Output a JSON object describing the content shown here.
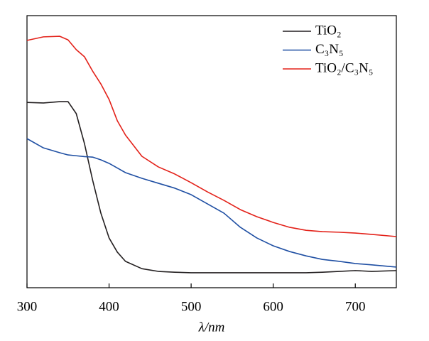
{
  "chart_data": {
    "type": "line",
    "xlabel": "λ/nm",
    "x": [
      300,
      320,
      340,
      350,
      360,
      370,
      380,
      390,
      400,
      410,
      420,
      440,
      460,
      480,
      500,
      520,
      540,
      560,
      580,
      600,
      620,
      640,
      660,
      680,
      700,
      720,
      750
    ],
    "series": [
      {
        "name": "TiO₂",
        "color": "#231f20",
        "values": [
          68.1,
          67.9,
          68.4,
          68.4,
          64.0,
          53.0,
          39.5,
          27.4,
          18.3,
          13.1,
          9.7,
          7.0,
          6.0,
          5.7,
          5.5,
          5.5,
          5.5,
          5.5,
          5.5,
          5.5,
          5.5,
          5.5,
          5.7,
          6.0,
          6.3,
          6.0,
          6.3
        ]
      },
      {
        "name": "C₃N₅",
        "color": "#1f4fa3",
        "values": [
          54.8,
          51.4,
          49.6,
          48.8,
          48.5,
          48.2,
          48.0,
          47.0,
          45.7,
          44.0,
          42.3,
          40.2,
          38.4,
          36.6,
          34.2,
          30.8,
          27.4,
          22.2,
          18.3,
          15.4,
          13.3,
          11.7,
          10.4,
          9.7,
          8.9,
          8.4,
          7.6
        ]
      },
      {
        "name": "TiO₂/C₃N₅",
        "color": "#e32119",
        "values": [
          90.9,
          92.2,
          92.4,
          91.1,
          87.5,
          84.9,
          79.6,
          74.9,
          69.2,
          61.4,
          56.1,
          48.3,
          44.4,
          41.8,
          38.6,
          35.2,
          32.1,
          28.7,
          26.1,
          24.0,
          22.2,
          21.1,
          20.6,
          20.4,
          20.1,
          19.6,
          18.8
        ]
      }
    ],
    "xlim": [
      300,
      750
    ],
    "xticks": [
      300,
      400,
      500,
      600,
      700
    ],
    "ylim": [
      0,
      100
    ],
    "legend": "upper-right"
  }
}
